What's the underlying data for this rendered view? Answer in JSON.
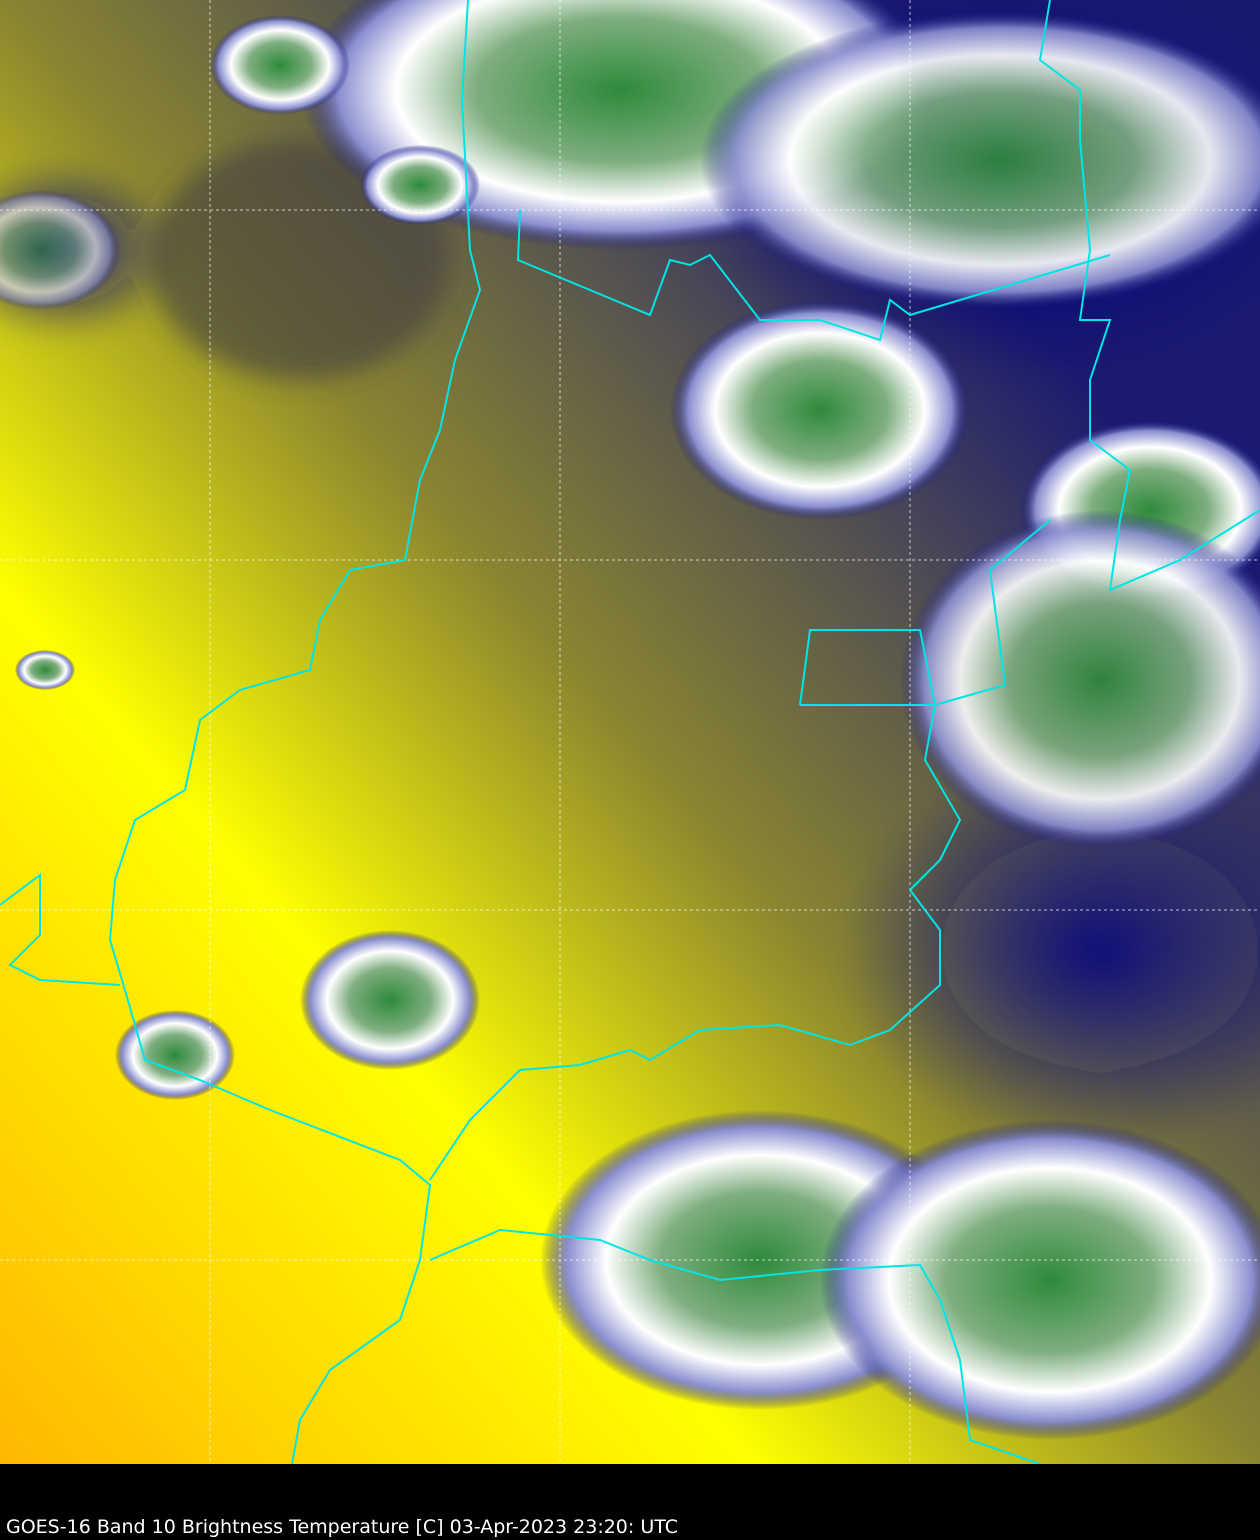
{
  "caption": {
    "satellite": "GOES-16",
    "text": "GOES-16 Band 10  Brightness Temperature [C] 03-Apr-2023 23:20: UTC"
  },
  "map": {
    "product": "Brightness Temperature",
    "units": "C",
    "colors": {
      "warm": "#ffff00",
      "warmest": "#ffb000",
      "mid": "#6e6a3a",
      "cold": "#101070",
      "colder": "#ffffff",
      "coldest": "#2a8a3a",
      "borders": "#00e5e5",
      "gridlines": "#ffffff",
      "background": "#000000"
    },
    "gridlines": "dashed"
  }
}
